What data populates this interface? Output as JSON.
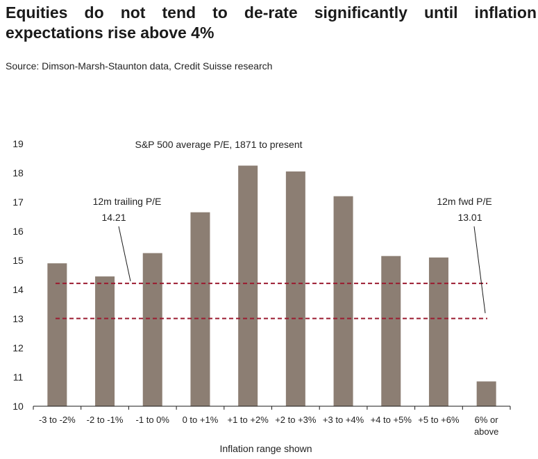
{
  "headline": "Equities do not tend to de-rate significantly until inflation expectations rise above 4%",
  "source": "Source: Dimson-Marsh-Staunton data, Credit Suisse research",
  "chart_data": {
    "type": "bar",
    "title": "S&P 500 average P/E, 1871 to present",
    "xlabel": "Inflation range shown",
    "ylabel": "",
    "ylim": [
      10,
      19
    ],
    "yticks": [
      "10",
      "11",
      "12",
      "13",
      "14",
      "15",
      "16",
      "17",
      "18",
      "19"
    ],
    "categories": [
      "-3 to -2%",
      "-2 to -1%",
      "-1 to 0%",
      "0 to +1%",
      "+1 to +2%",
      "+2 to +3%",
      "+3 to +4%",
      "+4 to +5%",
      "+5 to +6%",
      "6% or above"
    ],
    "values": [
      14.9,
      14.45,
      15.25,
      16.65,
      18.25,
      18.05,
      17.2,
      15.15,
      15.1,
      10.85
    ],
    "grid": false,
    "bar_color": "#8c7e73",
    "reference_lines": [
      {
        "label": "12m trailing P/E",
        "value_label": "14.21",
        "value": 14.21,
        "color": "#9b1b30",
        "style": "dashed"
      },
      {
        "label": "12m fwd P/E",
        "value_label": "13.01",
        "value": 13.01,
        "color": "#9b1b30",
        "style": "dashed"
      }
    ]
  }
}
